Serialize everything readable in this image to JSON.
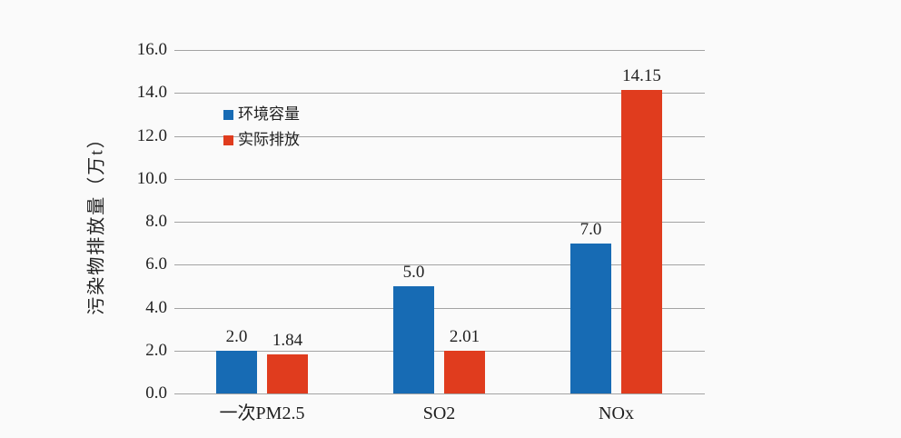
{
  "page": {
    "background_color": "#fafafa",
    "text_color": "#212121",
    "gridline_color": "#a3a3a3"
  },
  "chart_data": {
    "type": "bar",
    "title": "",
    "xlabel": "",
    "ylabel": "污染物排放量（万t）",
    "ylim": [
      0,
      16
    ],
    "y_tick_step": 2,
    "y_tick_labels": [
      "0.0",
      "2.0",
      "4.0",
      "6.0",
      "8.0",
      "10.0",
      "12.0",
      "14.0",
      "16.0"
    ],
    "grid": true,
    "legend_position": "upper-left-inside",
    "categories": [
      "一次PM2.5",
      "SO2",
      "NOx"
    ],
    "series": [
      {
        "name": "环境容量",
        "color": "#176bb4",
        "values": [
          2.0,
          5.0,
          7.0
        ],
        "value_labels": [
          "2.0",
          "5.0",
          "7.0"
        ]
      },
      {
        "name": "实际排放",
        "color": "#e03c1e",
        "values": [
          1.84,
          2.01,
          14.15
        ],
        "value_labels": [
          "1.84",
          "2.01",
          "14.15"
        ]
      }
    ]
  }
}
